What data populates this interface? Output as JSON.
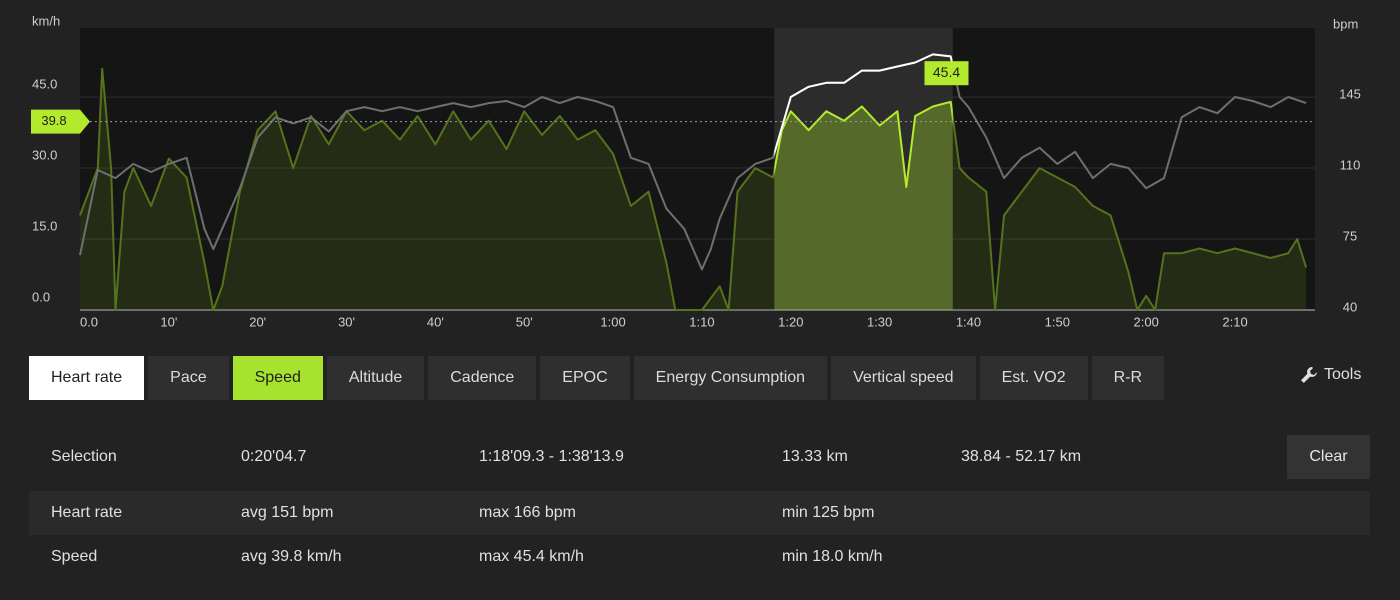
{
  "chart_data": {
    "type": "line",
    "ylabel": "km/h",
    "y2label": "bpm",
    "xlim": [
      0,
      139
    ],
    "xticks": [
      {
        "value": 0,
        "label": "0.0"
      },
      {
        "value": 10,
        "label": "10'"
      },
      {
        "value": 20,
        "label": "20'"
      },
      {
        "value": 30,
        "label": "30'"
      },
      {
        "value": 40,
        "label": "40'"
      },
      {
        "value": 50,
        "label": "50'"
      },
      {
        "value": 60,
        "label": "1:00"
      },
      {
        "value": 70,
        "label": "1:10"
      },
      {
        "value": 80,
        "label": "1:20"
      },
      {
        "value": 90,
        "label": "1:30"
      },
      {
        "value": 100,
        "label": "1:40"
      },
      {
        "value": 110,
        "label": "1:50"
      },
      {
        "value": 120,
        "label": "2:00"
      },
      {
        "value": 130,
        "label": "2:10"
      }
    ],
    "ylim": [
      0,
      59.6
    ],
    "yticks": [
      {
        "value": 0,
        "label": "0.0"
      },
      {
        "value": 15,
        "label": "15.0"
      },
      {
        "value": 30,
        "label": "30.0"
      },
      {
        "value": 45,
        "label": "45.0"
      }
    ],
    "y2lim": [
      40,
      179
    ],
    "y2ticks": [
      40,
      75,
      110,
      145
    ],
    "grid": true,
    "selection_range": [
      78.15,
      98.23
    ],
    "average": 39.8,
    "max_marker": {
      "x": 97.3,
      "value": 45.4
    },
    "series": [
      {
        "name": "Speed",
        "color": "#55731c",
        "highlight_color": "#b4ea2e",
        "x": [
          0,
          2,
          2.5,
          3.5,
          4,
          5,
          6,
          8,
          10,
          12,
          14,
          15,
          16,
          18,
          20,
          22,
          24,
          26,
          28,
          30,
          32,
          34,
          36,
          38,
          40,
          42,
          44,
          46,
          48,
          50,
          52,
          54,
          56,
          58,
          60,
          62,
          64,
          66,
          67,
          68,
          70,
          72,
          73,
          74,
          76,
          78,
          79,
          80,
          82,
          84,
          86,
          88,
          90,
          92,
          93,
          94,
          96,
          98,
          99,
          100,
          102,
          103,
          104,
          106,
          108,
          110,
          112,
          114,
          116,
          118,
          119,
          120,
          121,
          122,
          124,
          126,
          128,
          130,
          132,
          134,
          136,
          137,
          138
        ],
        "values": [
          20,
          30,
          51,
          30,
          0,
          25,
          30,
          22,
          32,
          28,
          10,
          0,
          5,
          25,
          38,
          42,
          30,
          41,
          35,
          42,
          38,
          40,
          36,
          41,
          35,
          42,
          36,
          40,
          34,
          42,
          37,
          41,
          36,
          38,
          33,
          22,
          25,
          10,
          0,
          0,
          0,
          5,
          0,
          25,
          30,
          28,
          38,
          42,
          38,
          42,
          40,
          43,
          39,
          42,
          26,
          41,
          43,
          44,
          30,
          28,
          25,
          0,
          20,
          25,
          30,
          28,
          26,
          22,
          20,
          8,
          0,
          3,
          0,
          12,
          12,
          13,
          12,
          13,
          12,
          11,
          12,
          15,
          9
        ]
      },
      {
        "name": "Heart rate",
        "color": "#6f6f6f",
        "highlight_color": "#ffffff",
        "axis": "y2",
        "x": [
          0,
          2,
          4,
          6,
          8,
          10,
          12,
          14,
          15,
          16,
          18,
          20,
          22,
          24,
          26,
          28,
          30,
          32,
          34,
          36,
          38,
          40,
          42,
          44,
          46,
          48,
          50,
          52,
          54,
          56,
          58,
          60,
          62,
          64,
          66,
          68,
          70,
          71,
          72,
          74,
          76,
          78,
          80,
          82,
          84,
          86,
          88,
          90,
          92,
          94,
          96,
          98,
          99,
          100,
          102,
          104,
          106,
          108,
          110,
          112,
          114,
          116,
          118,
          120,
          122,
          123,
          124,
          126,
          128,
          130,
          132,
          134,
          136,
          138
        ],
        "values": [
          67,
          109,
          105,
          112,
          108,
          112,
          115,
          80,
          70,
          80,
          100,
          125,
          135,
          132,
          135,
          128,
          138,
          140,
          138,
          140,
          138,
          140,
          142,
          140,
          142,
          143,
          140,
          145,
          142,
          145,
          143,
          140,
          115,
          112,
          90,
          80,
          60,
          70,
          85,
          105,
          112,
          115,
          145,
          150,
          152,
          152,
          158,
          158,
          160,
          162,
          166,
          165,
          145,
          140,
          125,
          105,
          115,
          120,
          112,
          118,
          105,
          112,
          110,
          100,
          105,
          120,
          135,
          140,
          137,
          145,
          143,
          140,
          145,
          142
        ]
      }
    ]
  },
  "tabs": [
    {
      "label": "Heart rate",
      "color": "#ffffff",
      "text_color": "#222222"
    },
    {
      "label": "Pace"
    },
    {
      "label": "Speed",
      "color": "#a6e22e",
      "text_color": "#1e1e1e"
    },
    {
      "label": "Altitude"
    },
    {
      "label": "Cadence"
    },
    {
      "label": "EPOC"
    },
    {
      "label": "Energy Consumption"
    },
    {
      "label": "Vertical speed"
    },
    {
      "label": "Est. VO2"
    },
    {
      "label": "R-R"
    }
  ],
  "tools": "Tools",
  "selection": {
    "label": "Selection",
    "duration": "0:20'04.7",
    "time_range": "1:18'09.3 - 1:38'13.9",
    "distance": "13.33 km",
    "distance_range": "38.84 - 52.17 km",
    "button": "Clear"
  },
  "stats": {
    "rows": [
      [
        "Heart rate",
        "avg 151 bpm",
        "max 166 bpm",
        "min 125 bpm"
      ],
      [
        "Speed",
        "avg 39.8 km/h",
        "max 45.4 km/h",
        "min 18.0 km/h"
      ]
    ]
  }
}
